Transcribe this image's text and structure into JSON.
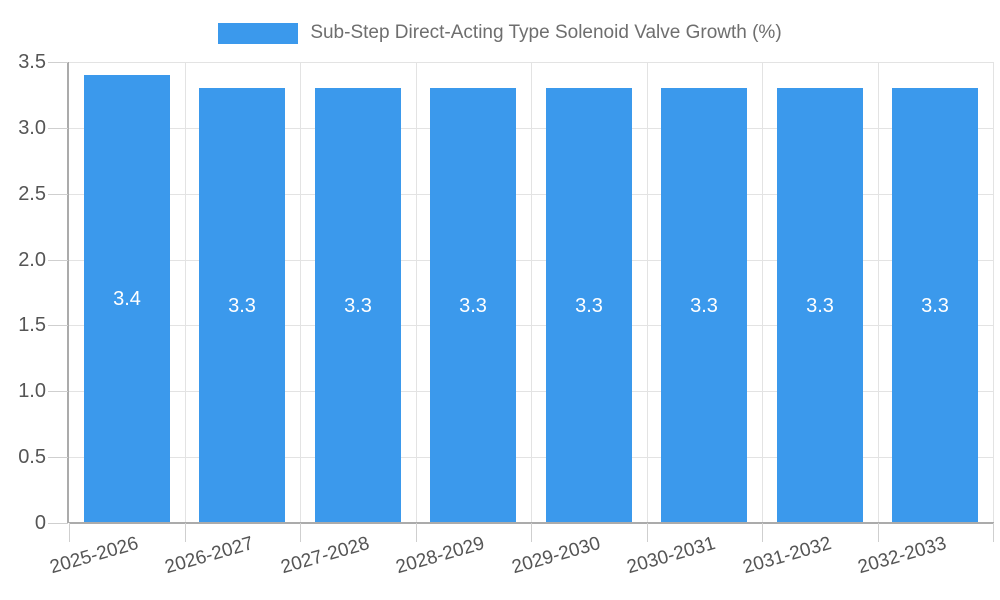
{
  "chart_data": {
    "type": "bar",
    "title": "Sub-Step Direct-Acting Type Solenoid Valve Growth (%)",
    "legend_position": "top",
    "categories": [
      "2025-2026",
      "2026-2027",
      "2027-2028",
      "2028-2029",
      "2029-2030",
      "2030-2031",
      "2031-2032",
      "2032-2033"
    ],
    "values": [
      3.4,
      3.3,
      3.3,
      3.3,
      3.3,
      3.3,
      3.3,
      3.3
    ],
    "value_labels": [
      "3.4",
      "3.3",
      "3.3",
      "3.3",
      "3.3",
      "3.3",
      "3.3",
      "3.3"
    ],
    "xlabel": "",
    "ylabel": "",
    "ylim": [
      0,
      3.5
    ],
    "y_tick_values": [
      0,
      0.5,
      1.0,
      1.5,
      2.0,
      2.5,
      3.0,
      3.5
    ],
    "y_tick_labels": [
      "0",
      "0.5",
      "1.0",
      "1.5",
      "2.0",
      "2.5",
      "3.0",
      "3.5"
    ],
    "grid": true,
    "colors": {
      "bar": "#3B99EC",
      "grid_line": "#E3E3E3",
      "axis_line": "#ABABAB",
      "tick_mark": "#CFCFCF",
      "axis_label": "#555555",
      "title_text": "#6E6E6E",
      "value_label": "#FFFFFF",
      "background": "#FFFFFF"
    }
  }
}
